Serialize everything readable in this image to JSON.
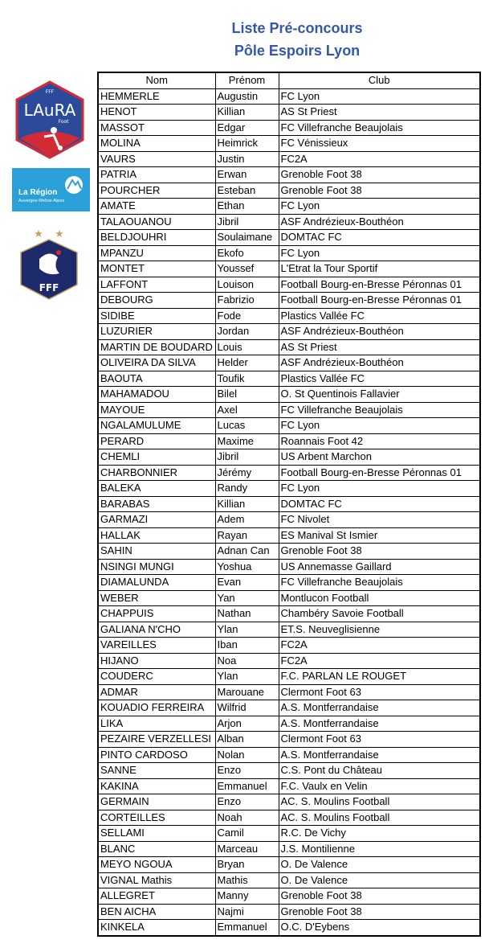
{
  "title": {
    "line1": "Liste Pré-concours",
    "line2": "Pôle Espoirs Lyon"
  },
  "logos": {
    "laura": "LAuRA Foot FFF",
    "region": {
      "name": "La Région",
      "sub": "Auvergne-Rhône-Alpes"
    },
    "fff": "FFF"
  },
  "colors": {
    "title": "#3457a6",
    "laura_blue": "#2b4b9a",
    "laura_red": "#d42a35",
    "region_blue": "#2a9fd8",
    "fff_navy": "#1d2a6b"
  },
  "headers": [
    "Nom",
    "Prénom",
    "Club"
  ],
  "rows": [
    [
      "HEMMERLE",
      "Augustin",
      "FC Lyon"
    ],
    [
      "HENOT",
      "Killian",
      "AS St Priest"
    ],
    [
      "MASSOT",
      "Edgar",
      "FC Villefranche Beaujolais"
    ],
    [
      "MOLINA",
      "Heimrick",
      "FC Vénissieux"
    ],
    [
      "VAURS",
      "Justin",
      "FC2A"
    ],
    [
      "PATRIA",
      "Erwan",
      "Grenoble Foot 38"
    ],
    [
      "POURCHER",
      "Esteban",
      "Grenoble Foot 38"
    ],
    [
      "AMATE",
      "Ethan",
      "FC Lyon"
    ],
    [
      "TALAOUANOU",
      "Jibril",
      "ASF Andrézieux-Bouthéon"
    ],
    [
      "BELDJOUHRI",
      "Soulaimane",
      "DOMTAC FC"
    ],
    [
      "MPANZU",
      "Ekofo",
      "FC Lyon"
    ],
    [
      "MONTET",
      "Youssef",
      "L'Etrat la Tour Sportif"
    ],
    [
      "LAFFONT",
      "Louison",
      "Football Bourg-en-Bresse Péronnas 01"
    ],
    [
      "DEBOURG",
      "Fabrizio",
      "Football Bourg-en-Bresse Péronnas 01"
    ],
    [
      "SIDIBE",
      "Fode",
      "Plastics Vallée FC"
    ],
    [
      "LUZURIER",
      "Jordan",
      "ASF Andrézieux-Bouthéon"
    ],
    [
      "MARTIN DE BOUDARD",
      "Louis",
      "AS St Priest"
    ],
    [
      "OLIVEIRA DA SILVA",
      "Helder",
      "ASF Andrézieux-Bouthéon"
    ],
    [
      "BAOUTA",
      "Toufik",
      "Plastics Vallée FC"
    ],
    [
      "MAHAMADOU",
      "Bilel",
      "O. St Quentinois Fallavier"
    ],
    [
      "MAYOUE",
      "Axel",
      "FC Villefranche Beaujolais"
    ],
    [
      "NGALAMULUME",
      "Lucas",
      "FC Lyon"
    ],
    [
      "PERARD",
      "Maxime",
      "Roannais Foot 42"
    ],
    [
      "CHEMLI",
      "Jibril",
      "US Arbent Marchon"
    ],
    [
      "CHARBONNIER",
      "Jérémy",
      "Football Bourg-en-Bresse Péronnas 01"
    ],
    [
      "BALEKA",
      "Randy",
      "FC Lyon"
    ],
    [
      "BARABAS",
      "Killian",
      "DOMTAC FC"
    ],
    [
      "GARMAZI",
      "Adem",
      "FC Nivolet"
    ],
    [
      "HALLAK",
      "Rayan",
      "ES Manival St Ismier"
    ],
    [
      "SAHIN",
      "Adnan Can",
      "Grenoble Foot 38"
    ],
    [
      "NSINGI MUNGI",
      "Yoshua",
      "US Annemasse Gaillard"
    ],
    [
      "DIAMALUNDA",
      "Evan",
      "FC Villefranche Beaujolais"
    ],
    [
      "WEBER",
      "Yan",
      "Montlucon Football"
    ],
    [
      "CHAPPUIS",
      "Nathan",
      "Chambéry Savoie Football"
    ],
    [
      "GALIANA N'CHO",
      "Ylan",
      "ET.S. Neuveglisienne"
    ],
    [
      "VAREILLES",
      "Iban",
      "FC2A"
    ],
    [
      "HIJANO",
      "Noa",
      "FC2A"
    ],
    [
      "COUDERC",
      "Ylan",
      "F.C. PARLAN LE ROUGET"
    ],
    [
      "ADMAR",
      "Marouane",
      "Clermont Foot 63"
    ],
    [
      "KOUADIO FERREIRA",
      "Wilfrid",
      "A.S. Montferrandaise"
    ],
    [
      "LIKA",
      "Arjon",
      "A.S. Montferrandaise"
    ],
    [
      "PEZAIRE VERZELLESI",
      "Alban",
      "Clermont Foot 63"
    ],
    [
      "PINTO CARDOSO",
      "Nolan",
      "A.S. Montferrandaise"
    ],
    [
      "SANNE",
      "Enzo",
      "C.S. Pont du Château"
    ],
    [
      "KAKINA",
      "Emmanuel",
      "F.C. Vaulx en Velin"
    ],
    [
      "GERMAIN",
      "Enzo",
      "AC. S. Moulins Football"
    ],
    [
      "CORTEILLES",
      "Noah",
      "AC. S. Moulins Football"
    ],
    [
      "SELLAMI",
      "Camil",
      "R.C. De Vichy"
    ],
    [
      "BLANC",
      "Marceau",
      "J.S. Montilienne"
    ],
    [
      "MEYO NGOUA",
      "Bryan",
      "O. De Valence"
    ],
    [
      "VIGNAL Mathis",
      "Mathis",
      "O. De Valence"
    ],
    [
      "ALLEGRET",
      "Manny",
      "Grenoble Foot 38"
    ],
    [
      "BEN AICHA",
      "Najmi",
      "Grenoble Foot 38"
    ],
    [
      "KINKELA",
      "Emmanuel",
      "O.C. D'Eybens"
    ]
  ]
}
